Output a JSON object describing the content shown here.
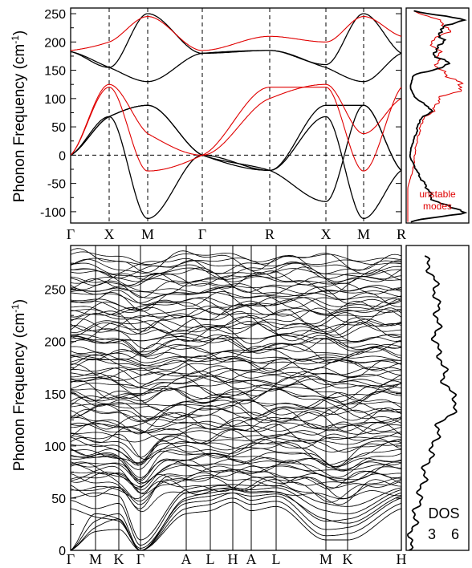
{
  "chart_data": [
    {
      "type": "line",
      "panel": "top phonon dispersion",
      "ylabel_main": "Phonon  Frequency  (cm",
      "ylabel_sup": "-1",
      "ylabel_close": ")",
      "ylim": [
        -120,
        260
      ],
      "yticks": [
        "-100",
        "-50",
        "0",
        "50",
        "100",
        "150",
        "200",
        "250"
      ],
      "xticks": [
        "Γ",
        "X",
        "M",
        "Γ",
        "R",
        "X",
        "M",
        "R"
      ],
      "grid": "dashed verticals at high-symmetry points, dashed zero line",
      "annotation_line1": "unstable",
      "annotation_line2": "modes",
      "colors": {
        "black": "#000000",
        "red": "#e00000"
      },
      "series": [
        {
          "color": "black",
          "x": [
            0,
            1,
            2,
            3,
            4,
            5,
            6,
            7
          ],
          "y": [
            0,
            68,
            -112,
            0,
            -27,
            68,
            -112,
            -27
          ]
        },
        {
          "color": "black",
          "x": [
            0,
            1,
            2,
            3,
            4,
            5,
            6,
            7
          ],
          "y": [
            0,
            68,
            88,
            0,
            -27,
            88,
            88,
            -27
          ]
        },
        {
          "color": "black",
          "x": [
            0,
            1,
            2,
            3,
            4,
            5,
            6,
            7
          ],
          "y": [
            0,
            68,
            88,
            0,
            -27,
            -82,
            88,
            -27
          ]
        },
        {
          "color": "black",
          "x": [
            0,
            1,
            2,
            3,
            4,
            5,
            6,
            7
          ],
          "y": [
            183,
            155,
            130,
            180,
            185,
            155,
            130,
            180
          ]
        },
        {
          "color": "black",
          "x": [
            0,
            1,
            2,
            3,
            4,
            5,
            6,
            7
          ],
          "y": [
            183,
            155,
            250,
            180,
            185,
            160,
            250,
            180
          ]
        },
        {
          "color": "red",
          "x": [
            0,
            1,
            2,
            3,
            4,
            5,
            6,
            7
          ],
          "y": [
            0,
            120,
            -28,
            0,
            120,
            120,
            -28,
            120
          ]
        },
        {
          "color": "red",
          "x": [
            0,
            1,
            2,
            3,
            4,
            5,
            6,
            7
          ],
          "y": [
            0,
            125,
            38,
            0,
            100,
            125,
            38,
            100
          ]
        },
        {
          "color": "red",
          "x": [
            0,
            1,
            2,
            3,
            4,
            5,
            6,
            7
          ],
          "y": [
            185,
            200,
            245,
            185,
            210,
            200,
            245,
            210
          ]
        }
      ]
    },
    {
      "type": "line",
      "panel": "top DOS",
      "values": [
        -118,
        -100,
        -80,
        -60,
        -40,
        -20,
        0,
        20,
        40,
        60,
        80,
        100,
        120,
        140,
        160,
        180,
        200,
        220,
        240,
        255
      ],
      "black": [
        0.05,
        0.95,
        0.45,
        0.35,
        0.22,
        0.12,
        0.04,
        0.08,
        0.15,
        0.2,
        0.4,
        0.15,
        0.05,
        0.1,
        0.7,
        0.45,
        0.6,
        0.55,
        0.9,
        0.1
      ],
      "red": [
        0,
        0,
        0,
        0,
        0.05,
        0.1,
        0.12,
        0.15,
        0.2,
        0.25,
        0.45,
        0.55,
        0.95,
        0.7,
        0.5,
        0.55,
        0.4,
        0.7,
        0.5,
        0.1
      ]
    },
    {
      "type": "line",
      "panel": "bottom phonon dispersion",
      "ylabel_main": "Phonon  Frequency  (cm",
      "ylabel_sup": "-1",
      "ylabel_close": ")",
      "ylim": [
        0,
        292
      ],
      "yticks": [
        "0",
        "50",
        "100",
        "150",
        "200",
        "250"
      ],
      "xticks": [
        "Γ",
        "M",
        "K",
        "Γ",
        "A",
        "L",
        "H",
        "A",
        "L",
        "M",
        "K",
        "H"
      ],
      "grid": "solid verticals at high-symmetry points"
    },
    {
      "type": "line",
      "panel": "bottom DOS",
      "xlabel": "DOS",
      "xticks": [
        "3",
        "6"
      ],
      "values": [
        0,
        30,
        50,
        80,
        100,
        120,
        140,
        160,
        180,
        200,
        220,
        240,
        260,
        280
      ],
      "dos": [
        0.02,
        0.12,
        0.2,
        0.32,
        0.45,
        0.55,
        0.85,
        0.65,
        0.6,
        0.48,
        0.52,
        0.5,
        0.45,
        0.3
      ]
    }
  ]
}
